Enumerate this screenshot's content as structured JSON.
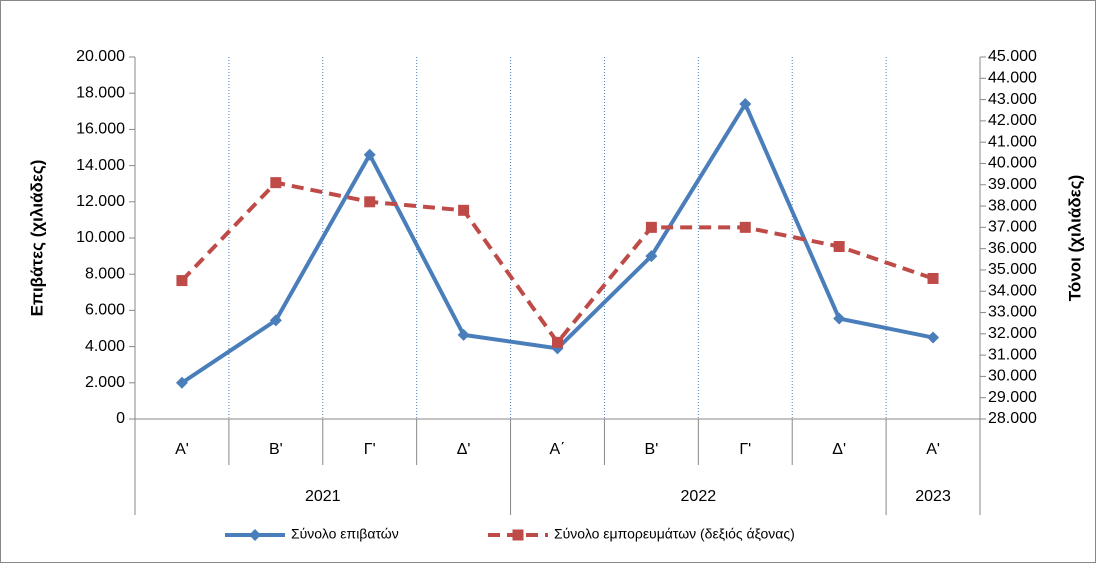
{
  "chart_data": {
    "type": "line",
    "category_groups": [
      {
        "name": "2021",
        "categories": [
          "Α'",
          "Β'",
          "Γ'",
          "Δ'"
        ]
      },
      {
        "name": "2022",
        "categories": [
          "Α΄",
          "Β'",
          "Γ'",
          "Δ'"
        ]
      },
      {
        "name": "2023",
        "categories": [
          "Α'"
        ]
      }
    ],
    "ylabel": "Επιβάτες  (χιλιάδες)",
    "y2label": "Τόνοι  (χιλιάδες)",
    "ylim": [
      0,
      20000
    ],
    "yticks": [
      0,
      {
        "value": 2000,
        "label": "2.000"
      },
      {
        "value": 4000,
        "label": "4.000"
      },
      {
        "value": 6000,
        "label": "6.000"
      },
      {
        "value": 8000,
        "label": "8.000"
      },
      {
        "value": 10000,
        "label": "10.000"
      },
      {
        "value": 12000,
        "label": "12.000"
      },
      {
        "value": 14000,
        "label": "14.000"
      },
      {
        "value": 16000,
        "label": "16.000"
      },
      {
        "value": 18000,
        "label": "18.000"
      },
      {
        "value": 20000,
        "label": "20.000"
      }
    ],
    "y2lim": [
      28000,
      45000
    ],
    "y2ticks": [
      {
        "value": 28000,
        "label": "28.000"
      },
      {
        "value": 29000,
        "label": "29.000"
      },
      {
        "value": 30000,
        "label": "30.000"
      },
      {
        "value": 31000,
        "label": "31.000"
      },
      {
        "value": 32000,
        "label": "32.000"
      },
      {
        "value": 33000,
        "label": "33.000"
      },
      {
        "value": 34000,
        "label": "34.000"
      },
      {
        "value": 35000,
        "label": "35.000"
      },
      {
        "value": 36000,
        "label": "36.000"
      },
      {
        "value": 37000,
        "label": "37.000"
      },
      {
        "value": 38000,
        "label": "38.000"
      },
      {
        "value": 39000,
        "label": "39.000"
      },
      {
        "value": 40000,
        "label": "40.000"
      },
      {
        "value": 41000,
        "label": "41.000"
      },
      {
        "value": 42000,
        "label": "42.000"
      },
      {
        "value": 43000,
        "label": "43.000"
      },
      {
        "value": 44000,
        "label": "44.000"
      },
      {
        "value": 45000,
        "label": "45.000"
      }
    ],
    "series": [
      {
        "name": "Σύνολο επιβατών",
        "color": "#4a7ebb",
        "marker": "diamond",
        "dashed": false,
        "values": [
          2000,
          5450,
          14600,
          4650,
          3900,
          9000,
          17400,
          5550,
          4500
        ]
      },
      {
        "name": "Σύνολο εμπορευμάτων (δεξιός άξονας)",
        "color": "#be4b48",
        "marker": "square",
        "dashed": true,
        "axis": "y2",
        "values": [
          34500,
          39100,
          38200,
          37800,
          31600,
          37000,
          37000,
          36100,
          34600
        ]
      }
    ],
    "grid": true,
    "legend": "bottom"
  }
}
